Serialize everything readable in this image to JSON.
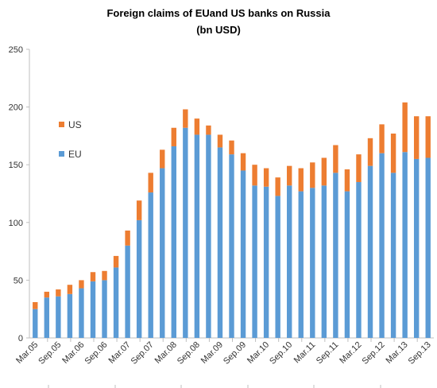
{
  "chart_data": {
    "type": "bar",
    "stacked": true,
    "title": "Foreign claims of EUand US banks on Russia",
    "subtitle": "(bn USD)",
    "xlabel": "",
    "ylabel": "",
    "ylim": [
      0,
      250
    ],
    "yticks": [
      0,
      50,
      100,
      150,
      200,
      250
    ],
    "grid": false,
    "legend_position": "left",
    "x_tick_labels": [
      "Mar.05",
      "Sep.05",
      "Mar.06",
      "Sep.06",
      "Mar.07",
      "Sep.07",
      "Mar.08",
      "Sep.08",
      "Mar.09",
      "Sep.09",
      "Mar.10",
      "Sep.10",
      "Mar.11",
      "Sep.11",
      "Mar.12",
      "Sep.12",
      "Mar.13",
      "Sep.13"
    ],
    "series": [
      {
        "name": "EU",
        "color": "#5b9bd5",
        "values": [
          25,
          35,
          36,
          38,
          43,
          49,
          50,
          61,
          80,
          102,
          126,
          147,
          166,
          182,
          176,
          176,
          165,
          159,
          145,
          132,
          131,
          123,
          132,
          127,
          130,
          132,
          143,
          127,
          135,
          149,
          160,
          143,
          161,
          155,
          156
        ]
      },
      {
        "name": "US",
        "color": "#ed7d31",
        "values": [
          6,
          5,
          6,
          8,
          7,
          8,
          8,
          10,
          13,
          17,
          17,
          16,
          16,
          16,
          14,
          8,
          11,
          12,
          15,
          18,
          16,
          16,
          17,
          20,
          22,
          24,
          24,
          19,
          24,
          24,
          25,
          34,
          43,
          37,
          36
        ]
      }
    ]
  }
}
